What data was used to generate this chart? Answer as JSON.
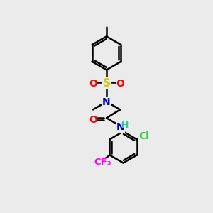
{
  "bg_color": "#ebebeb",
  "bond_color": "#000000",
  "atom_colors": {
    "S": "#cccc00",
    "O": "#ff0000",
    "N": "#0000cc",
    "Cl": "#33cc33",
    "F": "#ff00ff",
    "C": "#000000",
    "H": "#33cc99"
  },
  "lw": 1.8,
  "fs": 10
}
